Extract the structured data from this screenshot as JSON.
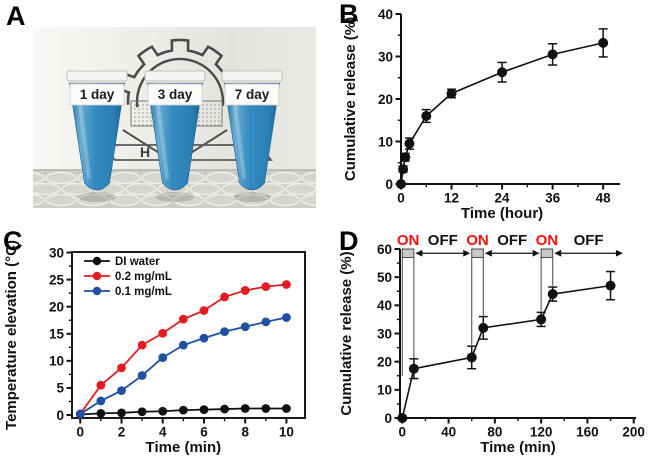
{
  "panel_labels": {
    "a": "A",
    "b": "B",
    "c": "C",
    "d": "D"
  },
  "photo": {
    "description": "three conical tubes of blue solution on bubble wrap in front of a gear logo",
    "tube_labels": [
      "1 day",
      "3 day",
      "7 day"
    ],
    "logo_letter": "H",
    "liquid_color": "#2f86bd"
  },
  "colors": {
    "series_black": "#111111",
    "series_red": "#e31b23",
    "series_blue": "#2150a0",
    "on_red": "#ee1309",
    "off_black": "#111111"
  },
  "chart_data": [
    {
      "panel": "B",
      "type": "line",
      "title": "",
      "xlabel": "Time (hour)",
      "ylabel": "Cumulative release (%)",
      "xlim": [
        0,
        52
      ],
      "ylim": [
        0,
        40
      ],
      "xticks": [
        0,
        12,
        24,
        36,
        48
      ],
      "yticks": [
        0,
        10,
        20,
        30,
        40
      ],
      "xminor": 6,
      "yminor": 5,
      "frame": "axes",
      "grid": false,
      "legend": null,
      "series": [
        {
          "name": "cumulative release",
          "color": "#111111",
          "marker": "circle",
          "x": [
            0,
            0.5,
            1,
            2,
            6,
            12,
            24,
            36,
            48
          ],
          "y": [
            0,
            3.5,
            6.3,
            9.5,
            16.0,
            21.3,
            26.3,
            30.5,
            33.2
          ],
          "yerr": [
            0,
            0.7,
            0.9,
            1.3,
            1.5,
            1.0,
            2.3,
            2.5,
            3.3
          ]
        }
      ]
    },
    {
      "panel": "C",
      "type": "line",
      "title": "",
      "xlabel": "Time (min)",
      "ylabel": "Temperature elevation (°C)",
      "xlim": [
        -0.4,
        10.9
      ],
      "ylim": [
        -0.55,
        30.1
      ],
      "xticks": [
        0,
        2,
        4,
        6,
        8,
        10
      ],
      "yticks": [
        0,
        5,
        10,
        15,
        20,
        25,
        30
      ],
      "xminor": 1,
      "yminor": 2.5,
      "frame": "box",
      "grid": false,
      "legend": {
        "position": "top-left"
      },
      "series": [
        {
          "name": "DI water",
          "color": "#111111",
          "marker": "circle",
          "x": [
            0,
            1,
            2,
            3,
            4,
            5,
            6,
            7,
            8,
            9,
            10
          ],
          "y": [
            0.1,
            0.3,
            0.4,
            0.6,
            0.7,
            0.9,
            1.0,
            1.1,
            1.2,
            1.2,
            1.2
          ]
        },
        {
          "name": "0.2 mg/mL",
          "color": "#e31b23",
          "marker": "circle",
          "x": [
            0,
            1,
            2,
            3,
            4,
            5,
            6,
            7,
            8,
            9,
            10
          ],
          "y": [
            0.2,
            5.5,
            8.7,
            12.9,
            15.1,
            17.7,
            19.3,
            21.8,
            23.0,
            23.7,
            24.1
          ]
        },
        {
          "name": "0.1 mg/mL",
          "color": "#2150a0",
          "marker": "circle",
          "x": [
            0,
            1,
            2,
            3,
            4,
            5,
            6,
            7,
            8,
            9,
            10
          ],
          "y": [
            0.2,
            2.6,
            4.5,
            7.3,
            10.6,
            12.9,
            14.2,
            15.4,
            16.3,
            17.2,
            18.0
          ]
        }
      ]
    },
    {
      "panel": "D",
      "type": "line",
      "title": "",
      "xlabel": "Time (min)",
      "ylabel": "Cumulative release (%)",
      "xlim": [
        -2,
        202
      ],
      "ylim": [
        0,
        60
      ],
      "xticks": [
        0,
        40,
        80,
        120,
        160,
        200
      ],
      "yticks": [
        0,
        10,
        20,
        30,
        40,
        50,
        60
      ],
      "xminor": 20,
      "yminor": 5,
      "frame": "axes",
      "grid": false,
      "legend": null,
      "series": [
        {
          "name": "cumulative release",
          "color": "#111111",
          "marker": "circle",
          "x": [
            0,
            10,
            60,
            70,
            120,
            130,
            180
          ],
          "y": [
            0,
            17.5,
            21.5,
            32.0,
            35.0,
            44.0,
            47.0
          ],
          "yerr": [
            0.5,
            3.5,
            4.0,
            4.0,
            2.5,
            2.5,
            5.0
          ]
        }
      ],
      "laser_cycles": {
        "on_label": "ON",
        "off_label": "OFF",
        "on_color": "#ee1309",
        "off_color": "#111111",
        "on_intervals": [
          [
            0,
            10
          ],
          [
            60,
            70
          ],
          [
            120,
            130
          ]
        ],
        "off_spans": [
          [
            10,
            60
          ],
          [
            70,
            120
          ],
          [
            130,
            192
          ]
        ],
        "box_value_range": [
          57,
          60
        ],
        "drop_to": [
          [
            15,
            21
          ],
          [
            26,
            36
          ],
          [
            38,
            47
          ]
        ]
      }
    }
  ]
}
